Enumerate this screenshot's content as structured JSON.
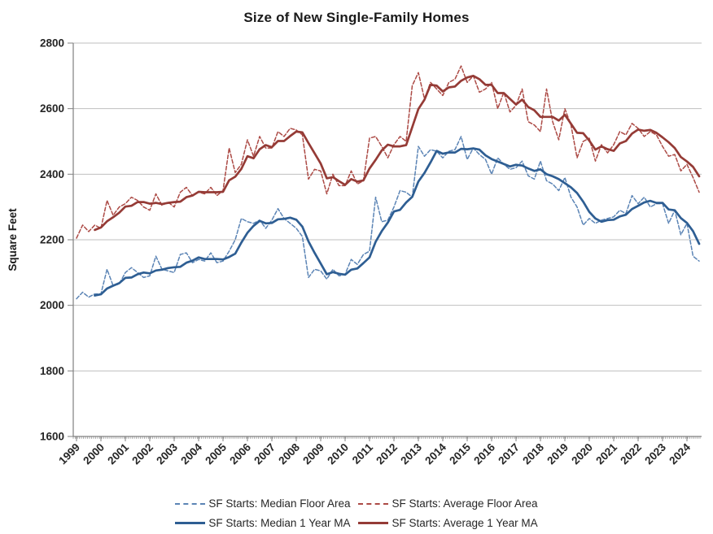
{
  "title": "Size of New Single-Family Homes",
  "y_axis": {
    "label": "Square Feet",
    "ticks": [
      "2800",
      "2600",
      "2400",
      "2200",
      "2000",
      "1800",
      "1600"
    ],
    "min": 1600,
    "max": 2800
  },
  "x_axis": {
    "ticks": [
      "1999",
      "2000",
      "2001",
      "2002",
      "2003",
      "2004",
      "2005",
      "2006",
      "2007",
      "2008",
      "2009",
      "2010",
      "2011",
      "2012",
      "2013",
      "2014",
      "2015",
      "2016",
      "2017",
      "2018",
      "2019",
      "2020",
      "2021",
      "2022",
      "2023",
      "2024"
    ]
  },
  "colors": {
    "median_quarterly": "#5B84B5",
    "average_quarterly": "#AC4A45",
    "median_ma": "#2E5E93",
    "average_ma": "#953B36",
    "gridline": "#BFBFBF",
    "axis": "#808080",
    "text": "#262626"
  },
  "chart_data": {
    "type": "line",
    "title": "Size of New Single-Family Homes",
    "xlabel": "",
    "ylabel": "Square Feet",
    "ylim": [
      1600,
      2800
    ],
    "grid": "horizontal",
    "legend_position": "bottom",
    "x_unit": "quarter",
    "x_start": "1999Q1",
    "x_end": "2024Q3",
    "series": [
      {
        "name": "SF Starts: Median Floor Area",
        "style": "dashed",
        "color": "#5B84B5",
        "values": [
          2020,
          2040,
          2025,
          2035,
          2035,
          2110,
          2060,
          2065,
          2100,
          2115,
          2100,
          2085,
          2090,
          2150,
          2110,
          2105,
          2100,
          2155,
          2160,
          2130,
          2140,
          2135,
          2160,
          2130,
          2135,
          2165,
          2200,
          2265,
          2255,
          2250,
          2260,
          2235,
          2260,
          2295,
          2265,
          2250,
          2235,
          2210,
          2085,
          2110,
          2105,
          2080,
          2110,
          2090,
          2095,
          2140,
          2125,
          2155,
          2165,
          2330,
          2255,
          2260,
          2300,
          2350,
          2345,
          2330,
          2485,
          2455,
          2475,
          2470,
          2450,
          2470,
          2475,
          2515,
          2445,
          2480,
          2460,
          2445,
          2400,
          2450,
          2430,
          2415,
          2420,
          2440,
          2395,
          2385,
          2440,
          2380,
          2370,
          2350,
          2390,
          2330,
          2300,
          2245,
          2265,
          2250,
          2260,
          2265,
          2270,
          2290,
          2280,
          2335,
          2310,
          2330,
          2300,
          2310,
          2310,
          2250,
          2290,
          2215,
          2250,
          2150,
          2135
        ]
      },
      {
        "name": "SF Starts: Average Floor Area",
        "style": "dashed",
        "color": "#AC4A45",
        "values": [
          2205,
          2245,
          2225,
          2245,
          2235,
          2320,
          2275,
          2300,
          2310,
          2330,
          2320,
          2300,
          2290,
          2340,
          2305,
          2315,
          2300,
          2345,
          2360,
          2335,
          2345,
          2340,
          2360,
          2335,
          2350,
          2480,
          2405,
          2430,
          2505,
          2455,
          2515,
          2480,
          2480,
          2530,
          2515,
          2540,
          2535,
          2520,
          2385,
          2415,
          2410,
          2340,
          2400,
          2365,
          2365,
          2410,
          2370,
          2380,
          2510,
          2515,
          2485,
          2450,
          2490,
          2515,
          2500,
          2670,
          2710,
          2630,
          2680,
          2660,
          2640,
          2680,
          2690,
          2730,
          2680,
          2700,
          2650,
          2660,
          2680,
          2600,
          2650,
          2590,
          2610,
          2660,
          2560,
          2550,
          2530,
          2660,
          2560,
          2505,
          2600,
          2550,
          2450,
          2500,
          2510,
          2440,
          2490,
          2465,
          2490,
          2530,
          2520,
          2555,
          2540,
          2515,
          2530,
          2520,
          2485,
          2455,
          2460,
          2410,
          2430,
          2390,
          2345
        ]
      },
      {
        "name": "SF Starts: Median 1 Year MA",
        "style": "solid",
        "color": "#2E5E93",
        "derived": {
          "from": "SF Starts: Median Floor Area",
          "window": 4,
          "method": "trailing moving average"
        }
      },
      {
        "name": "SF Starts: Average 1 Year MA",
        "style": "solid",
        "color": "#953B36",
        "derived": {
          "from": "SF Starts: Average Floor Area",
          "window": 4,
          "method": "trailing moving average"
        }
      }
    ]
  },
  "legend": {
    "rows": [
      [
        {
          "series": 0
        },
        {
          "series": 1
        }
      ],
      [
        {
          "series": 2
        },
        {
          "series": 3
        }
      ]
    ]
  }
}
